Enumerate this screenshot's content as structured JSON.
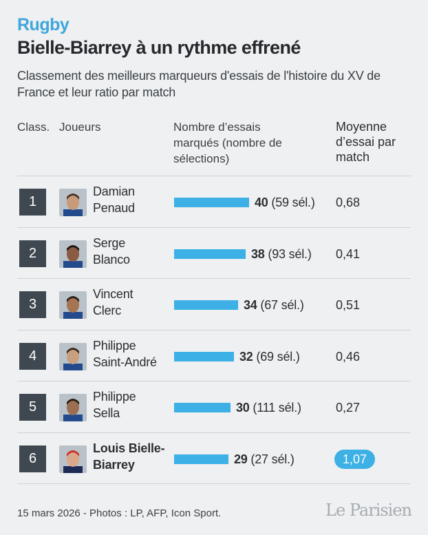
{
  "kicker": "Rugby",
  "title": "Bielle-Biarrey à un rythme effrené",
  "subtitle": "Classement des meilleurs marqueurs d'essais de l'histoire du XV de France et leur ratio par match",
  "headers": {
    "rank": "Class.",
    "player": "Joueurs",
    "tries": "Nombre d’essais marqués (nombre de sélections)",
    "avg": "Moyenne d’essai par match"
  },
  "chart_data": {
    "type": "bar",
    "categories": [
      "Damian Penaud",
      "Serge Blanco",
      "Vincent Clerc",
      "Philippe Saint-André",
      "Philippe Sella",
      "Louis Bielle-Biarrey"
    ],
    "series": [
      {
        "values": [
          40,
          38,
          34,
          32,
          30,
          29
        ]
      }
    ],
    "selections": [
      59,
      93,
      67,
      69,
      111,
      27
    ],
    "average_per_match": [
      "0,68",
      "0,41",
      "0,51",
      "0,46",
      "0,27",
      "1,07"
    ],
    "highlight_index": 5,
    "bar_color": "#3db0e5",
    "highlight_color": "#3db0e5"
  },
  "rows": [
    {
      "rank": "1",
      "name_l1": "Damian",
      "name_l2": "Penaud",
      "tries": "40",
      "sel": " (59 sél.)",
      "avg": "0,68"
    },
    {
      "rank": "2",
      "name_l1": "Serge",
      "name_l2": "Blanco",
      "tries": "38",
      "sel": " (93 sél.)",
      "avg": "0,41"
    },
    {
      "rank": "3",
      "name_l1": "Vincent",
      "name_l2": "Clerc",
      "tries": "34",
      "sel": " (67 sél.)",
      "avg": "0,51"
    },
    {
      "rank": "4",
      "name_l1": "Philippe",
      "name_l2": "Saint-André",
      "tries": "32",
      "sel": " (69 sél.)",
      "avg": "0,46"
    },
    {
      "rank": "5",
      "name_l1": "Philippe",
      "name_l2": "Sella",
      "tries": "30",
      "sel": " (111 sél.)",
      "avg": "0,27"
    },
    {
      "rank": "6",
      "name_l1": "Louis Bielle-",
      "name_l2": "Biarrey",
      "tries": "29",
      "sel": " (27 sél.)",
      "avg": "1,07"
    }
  ],
  "footer": "15 mars 2026 - Photos : LP, AFP, Icon Sport.",
  "logo": "Le Parisien"
}
